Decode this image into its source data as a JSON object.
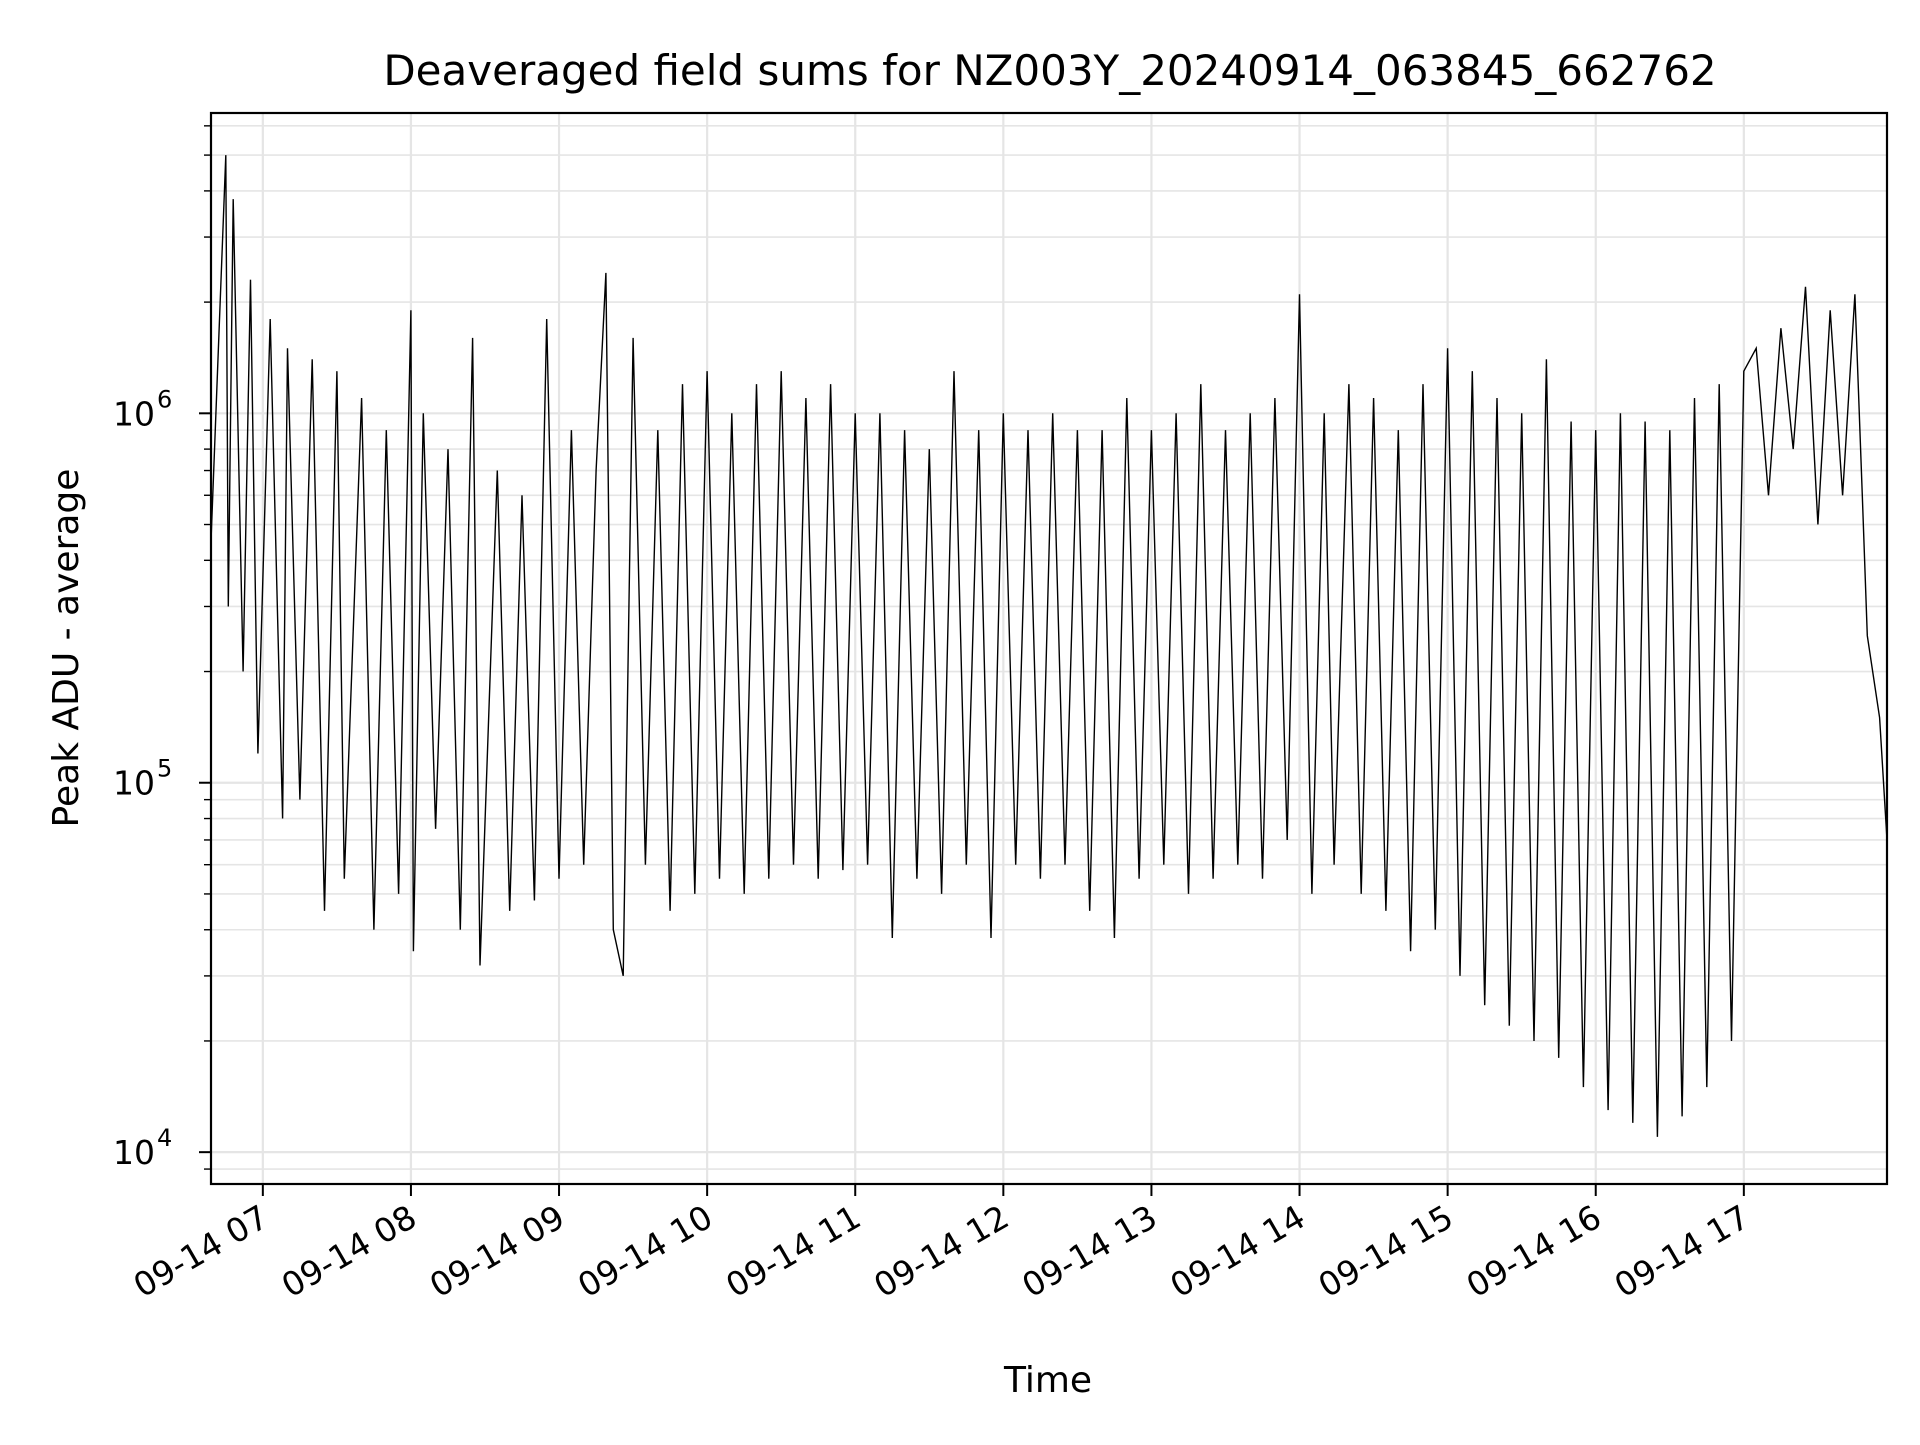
{
  "chart_data": {
    "type": "line",
    "title": "Deaveraged field sums for NZ003Y_20240914_063845_662762",
    "xlabel": "Time",
    "ylabel": "Peak ADU - average",
    "yscale": "log",
    "ylim": [
      8200,
      6500000
    ],
    "xlim": [
      "2024-09-14 06:39",
      "2024-09-14 17:58"
    ],
    "grid": true,
    "x_ticks": [
      {
        "value": "2024-09-14 07:00",
        "label": "09-14 07"
      },
      {
        "value": "2024-09-14 08:00",
        "label": "09-14 08"
      },
      {
        "value": "2024-09-14 09:00",
        "label": "09-14 09"
      },
      {
        "value": "2024-09-14 10:00",
        "label": "09-14 10"
      },
      {
        "value": "2024-09-14 11:00",
        "label": "09-14 11"
      },
      {
        "value": "2024-09-14 12:00",
        "label": "09-14 12"
      },
      {
        "value": "2024-09-14 13:00",
        "label": "09-14 13"
      },
      {
        "value": "2024-09-14 14:00",
        "label": "09-14 14"
      },
      {
        "value": "2024-09-14 15:00",
        "label": "09-14 15"
      },
      {
        "value": "2024-09-14 16:00",
        "label": "09-14 16"
      },
      {
        "value": "2024-09-14 17:00",
        "label": "09-14 17"
      }
    ],
    "y_ticks": [
      {
        "value": 10000,
        "base": "10",
        "exp": "4"
      },
      {
        "value": 100000,
        "base": "10",
        "exp": "5"
      },
      {
        "value": 1000000,
        "base": "10",
        "exp": "6"
      }
    ],
    "series_color": "#000000",
    "grid_color": "#e5e5e5",
    "series": [
      {
        "x": [
          "2024-09-14 06:39",
          "2024-09-14 06:45",
          "2024-09-14 06:46",
          "2024-09-14 06:48",
          "2024-09-14 06:52",
          "2024-09-14 06:55",
          "2024-09-14 06:58",
          "2024-09-14 07:03",
          "2024-09-14 07:08",
          "2024-09-14 07:10",
          "2024-09-14 07:15",
          "2024-09-14 07:20",
          "2024-09-14 07:25",
          "2024-09-14 07:30",
          "2024-09-14 07:33",
          "2024-09-14 07:40",
          "2024-09-14 07:45",
          "2024-09-14 07:50",
          "2024-09-14 07:55",
          "2024-09-14 08:00",
          "2024-09-14 08:01",
          "2024-09-14 08:05",
          "2024-09-14 08:10",
          "2024-09-14 08:15",
          "2024-09-14 08:20",
          "2024-09-14 08:25",
          "2024-09-14 08:28",
          "2024-09-14 08:35",
          "2024-09-14 08:40",
          "2024-09-14 08:45",
          "2024-09-14 08:50",
          "2024-09-14 08:55",
          "2024-09-14 09:00",
          "2024-09-14 09:05",
          "2024-09-14 09:10",
          "2024-09-14 09:15",
          "2024-09-14 09:19",
          "2024-09-14 09:22",
          "2024-09-14 09:26",
          "2024-09-14 09:30",
          "2024-09-14 09:35",
          "2024-09-14 09:40",
          "2024-09-14 09:45",
          "2024-09-14 09:50",
          "2024-09-14 09:55",
          "2024-09-14 10:00",
          "2024-09-14 10:05",
          "2024-09-14 10:10",
          "2024-09-14 10:15",
          "2024-09-14 10:20",
          "2024-09-14 10:25",
          "2024-09-14 10:30",
          "2024-09-14 10:35",
          "2024-09-14 10:40",
          "2024-09-14 10:45",
          "2024-09-14 10:50",
          "2024-09-14 10:55",
          "2024-09-14 11:00",
          "2024-09-14 11:05",
          "2024-09-14 11:10",
          "2024-09-14 11:15",
          "2024-09-14 11:20",
          "2024-09-14 11:25",
          "2024-09-14 11:30",
          "2024-09-14 11:35",
          "2024-09-14 11:40",
          "2024-09-14 11:45",
          "2024-09-14 11:50",
          "2024-09-14 11:55",
          "2024-09-14 12:00",
          "2024-09-14 12:05",
          "2024-09-14 12:10",
          "2024-09-14 12:15",
          "2024-09-14 12:20",
          "2024-09-14 12:25",
          "2024-09-14 12:30",
          "2024-09-14 12:35",
          "2024-09-14 12:40",
          "2024-09-14 12:45",
          "2024-09-14 12:50",
          "2024-09-14 12:55",
          "2024-09-14 13:00",
          "2024-09-14 13:05",
          "2024-09-14 13:10",
          "2024-09-14 13:15",
          "2024-09-14 13:20",
          "2024-09-14 13:25",
          "2024-09-14 13:30",
          "2024-09-14 13:35",
          "2024-09-14 13:40",
          "2024-09-14 13:45",
          "2024-09-14 13:50",
          "2024-09-14 13:55",
          "2024-09-14 14:00",
          "2024-09-14 14:05",
          "2024-09-14 14:10",
          "2024-09-14 14:14",
          "2024-09-14 14:20",
          "2024-09-14 14:25",
          "2024-09-14 14:30",
          "2024-09-14 14:35",
          "2024-09-14 14:40",
          "2024-09-14 14:45",
          "2024-09-14 14:50",
          "2024-09-14 14:55",
          "2024-09-14 15:00",
          "2024-09-14 15:05",
          "2024-09-14 15:10",
          "2024-09-14 15:15",
          "2024-09-14 15:20",
          "2024-09-14 15:25",
          "2024-09-14 15:30",
          "2024-09-14 15:35",
          "2024-09-14 15:40",
          "2024-09-14 15:45",
          "2024-09-14 15:50",
          "2024-09-14 15:55",
          "2024-09-14 16:00",
          "2024-09-14 16:05",
          "2024-09-14 16:10",
          "2024-09-14 16:15",
          "2024-09-14 16:20",
          "2024-09-14 16:25",
          "2024-09-14 16:30",
          "2024-09-14 16:35",
          "2024-09-14 16:40",
          "2024-09-14 16:45",
          "2024-09-14 16:50",
          "2024-09-14 16:55",
          "2024-09-14 17:00",
          "2024-09-14 17:05",
          "2024-09-14 17:10",
          "2024-09-14 17:15",
          "2024-09-14 17:20",
          "2024-09-14 17:25",
          "2024-09-14 17:30",
          "2024-09-14 17:35",
          "2024-09-14 17:40",
          "2024-09-14 17:45",
          "2024-09-14 17:48",
          "2024-09-14 17:50",
          "2024-09-14 17:55",
          "2024-09-14 17:58"
        ],
        "y": [
          450000,
          5000000,
          300000,
          3800000,
          200000,
          2300000,
          120000,
          1800000,
          80000,
          1500000,
          90000,
          1400000,
          45000,
          1300000,
          55000,
          1100000,
          40000,
          900000,
          50000,
          1900000,
          35000,
          1000000,
          75000,
          800000,
          40000,
          1600000,
          32000,
          700000,
          45000,
          600000,
          48000,
          1800000,
          55000,
          900000,
          60000,
          700000,
          2400000,
          40000,
          30000,
          1600000,
          60000,
          900000,
          45000,
          1200000,
          50000,
          1300000,
          55000,
          1000000,
          50000,
          1200000,
          55000,
          1300000,
          60000,
          1100000,
          55000,
          1200000,
          58000,
          1000000,
          60000,
          1000000,
          38000,
          900000,
          55000,
          800000,
          50000,
          1300000,
          60000,
          900000,
          38000,
          1000000,
          60000,
          900000,
          55000,
          1000000,
          60000,
          900000,
          45000,
          900000,
          38000,
          1100000,
          55000,
          900000,
          60000,
          1000000,
          50000,
          1200000,
          55000,
          900000,
          60000,
          1000000,
          55000,
          1100000,
          70000,
          2100000,
          50000,
          1000000,
          60000,
          1200000,
          50000,
          1100000,
          45000,
          900000,
          35000,
          1200000,
          40000,
          1500000,
          30000,
          1300000,
          25000,
          1100000,
          22000,
          1000000,
          20000,
          1400000,
          18000,
          950000,
          15000,
          900000,
          13000,
          1000000,
          12000,
          950000,
          11000,
          900000,
          12500,
          1100000,
          15000,
          1200000,
          20000,
          1300000,
          1500000,
          600000,
          1700000,
          800000,
          2200000,
          500000,
          1900000,
          600000,
          2100000,
          600000,
          250000,
          150000,
          70000
        ]
      }
    ]
  }
}
